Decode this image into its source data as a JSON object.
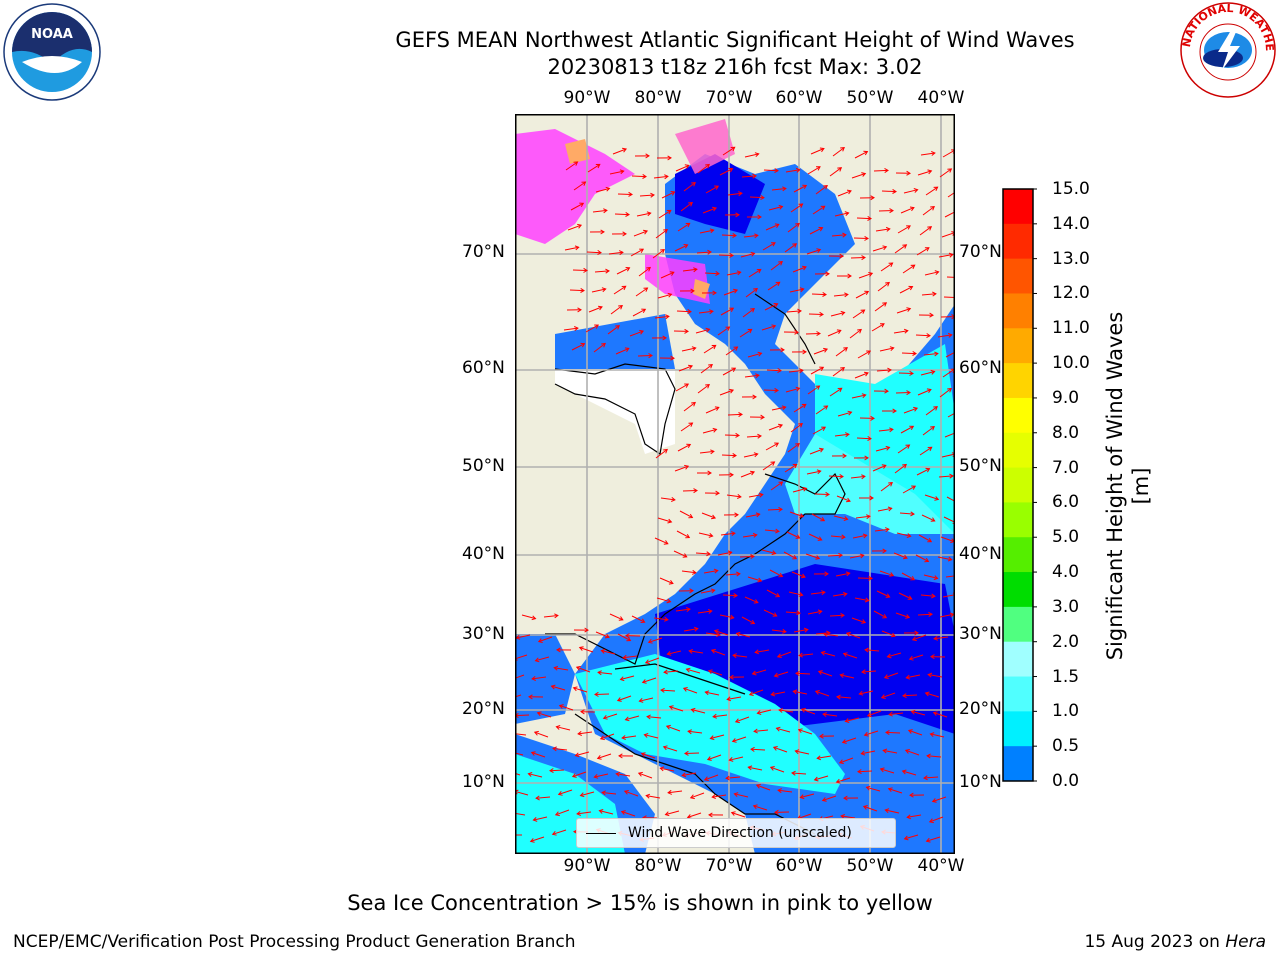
{
  "title": {
    "line1": "GEFS MEAN Northwest Atlantic Significant Height of Wind Waves",
    "line2": "20230813 t18z 216h fcst   Max: 3.02"
  },
  "lon_labels": [
    "90°W",
    "80°W",
    "70°W",
    "60°W",
    "50°W",
    "40°W"
  ],
  "lat_labels": [
    "70°N",
    "60°N",
    "50°N",
    "40°N",
    "30°N",
    "20°N",
    "10°N"
  ],
  "colorbar": {
    "label": "Significant Height of Wind Waves [m]",
    "ticks": [
      "15.0",
      "14.0",
      "13.0",
      "12.0",
      "11.0",
      "10.0",
      "9.0",
      "8.0",
      "7.0",
      "6.0",
      "5.0",
      "4.0",
      "3.0",
      "2.0",
      "1.5",
      "1.0",
      "0.5",
      "0.0"
    ],
    "colors": [
      "#ff0000",
      "#ff2a00",
      "#ff5500",
      "#ff8000",
      "#ffaa00",
      "#ffd400",
      "#ffff00",
      "#e6ff00",
      "#ccff00",
      "#99ff00",
      "#55ee00",
      "#00dd00",
      "#50ff80",
      "#a0ffff",
      "#50ffff",
      "#00f0ff",
      "#0080ff",
      "#0000ff"
    ]
  },
  "legend": {
    "label": "Wind Wave Direction (unscaled)"
  },
  "ice_note": "Sea Ice Concentration > 15% is shown in pink to yellow",
  "footer": {
    "left": "NCEP/EMC/Verification Post Processing Product Generation Branch",
    "right_date": "15 Aug 2023 on",
    "right_machine": "Hera"
  },
  "logos": {
    "noaa": "NOAA",
    "nws": "NATIONAL WEATHER SERVICE"
  },
  "map_colors": {
    "land": "#efeedd",
    "ocean_low": "#0000f0",
    "ocean_mid": "#1e78ff",
    "ocean_high": "#20ffff",
    "arrow": "#ff0000",
    "grid": "#b0b0b0"
  }
}
